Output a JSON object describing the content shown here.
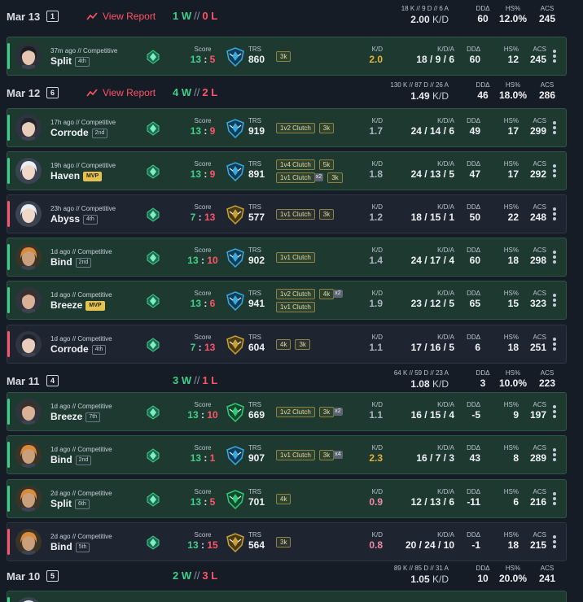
{
  "colors": {
    "win": "#3fcf8a",
    "loss": "#ff5468",
    "neutral": "#aab4c0",
    "gold": "#e3b33a",
    "pink": "#f08aa7"
  },
  "days": [
    {
      "date": "Mar 13",
      "count": "1",
      "report_label": "View Report",
      "wins": "1 W",
      "losses": "0 L",
      "raw": "18 K // 9 D // 6 A",
      "kd_value": "2.00",
      "kd_unit": "K/D",
      "dda_label": "DDΔ",
      "dda": "60",
      "hs_label": "HS%",
      "hs": "12.0%",
      "acs_label": "ACS",
      "acs": "245",
      "matches": [
        {
          "result": "win",
          "agent": "sage-dark",
          "meta": "37m ago // Competitive",
          "map": "Split",
          "place": "4th",
          "place_mvp": false,
          "score_label": "Score",
          "score_a": "13",
          "score_b": "5",
          "score_a_color": "win",
          "score_b_color": "loss",
          "trs_label": "TRS",
          "trs": "860",
          "trs_icon": "blue",
          "tags": [
            [
              {
                "t": "3k"
              }
            ]
          ],
          "kd_label": "K/D",
          "kd": "2.0",
          "kd_color": "gold",
          "kda_label": "K/D/A",
          "kda": "18 / 9 / 6",
          "dda_label": "DDΔ",
          "dda": "60",
          "hs_label": "HS%",
          "hs": "12",
          "acs_label": "ACS",
          "acs": "245"
        }
      ]
    },
    {
      "date": "Mar 12",
      "count": "6",
      "report_label": "View Report",
      "wins": "4 W",
      "losses": "2 L",
      "raw": "130 K // 87 D // 26 A",
      "kd_value": "1.49",
      "kd_unit": "K/D",
      "dda_label": "DDΔ",
      "dda": "46",
      "hs_label": "HS%",
      "hs": "18.0%",
      "acs_label": "ACS",
      "acs": "286",
      "matches": [
        {
          "result": "win",
          "agent": "dark-hair",
          "meta": "17h ago // Competitive",
          "map": "Corrode",
          "place": "2nd",
          "place_mvp": false,
          "score_label": "Score",
          "score_a": "13",
          "score_b": "9",
          "score_a_color": "win",
          "score_b_color": "loss",
          "trs_label": "TRS",
          "trs": "919",
          "trs_icon": "blue",
          "tags": [
            [
              {
                "t": "1v2 Clutch"
              },
              {
                "t": "3k"
              }
            ]
          ],
          "kd_label": "K/D",
          "kd": "1.7",
          "kd_color": "neutral",
          "kda_label": "K/D/A",
          "kda": "24 / 14 / 6",
          "dda_label": "DDΔ",
          "dda": "49",
          "hs_label": "HS%",
          "hs": "17",
          "acs_label": "ACS",
          "acs": "299"
        },
        {
          "result": "win",
          "agent": "white-hair",
          "meta": "19h ago // Competitive",
          "map": "Haven",
          "place": "MVP",
          "place_mvp": true,
          "score_label": "Score",
          "score_a": "13",
          "score_b": "9",
          "score_a_color": "win",
          "score_b_color": "loss",
          "trs_label": "TRS",
          "trs": "891",
          "trs_icon": "blue",
          "tags": [
            [
              {
                "t": "1v4 Clutch"
              },
              {
                "t": "5k"
              }
            ],
            [
              {
                "t": "1v1 Clutch",
                "x": "x2"
              },
              {
                "t": "3k"
              }
            ]
          ],
          "kd_label": "K/D",
          "kd": "1.8",
          "kd_color": "neutral",
          "kda_label": "K/D/A",
          "kda": "24 / 13 / 5",
          "dda_label": "DDΔ",
          "dda": "47",
          "hs_label": "HS%",
          "hs": "17",
          "acs_label": "ACS",
          "acs": "292"
        },
        {
          "result": "loss",
          "agent": "white-hair",
          "meta": "23h ago // Competitive",
          "map": "Abyss",
          "place": "4th",
          "place_mvp": false,
          "score_label": "Score",
          "score_a": "7",
          "score_b": "13",
          "score_a_color": "win",
          "score_b_color": "loss",
          "trs_label": "TRS",
          "trs": "577",
          "trs_icon": "gold",
          "tags": [
            [
              {
                "t": "1v1 Clutch"
              },
              {
                "t": "3k"
              }
            ]
          ],
          "kd_label": "K/D",
          "kd": "1.2",
          "kd_color": "neutral",
          "kda_label": "K/D/A",
          "kda": "18 / 15 / 1",
          "dda_label": "DDΔ",
          "dda": "50",
          "hs_label": "HS%",
          "hs": "22",
          "acs_label": "ACS",
          "acs": "248"
        },
        {
          "result": "win",
          "agent": "orange-hair",
          "meta": "1d ago // Competitive",
          "map": "Bind",
          "place": "2nd",
          "place_mvp": false,
          "score_label": "Score",
          "score_a": "13",
          "score_b": "10",
          "score_a_color": "win",
          "score_b_color": "loss",
          "trs_label": "TRS",
          "trs": "902",
          "trs_icon": "blue",
          "tags": [
            [
              {
                "t": "1v1 Clutch"
              }
            ]
          ],
          "kd_label": "K/D",
          "kd": "1.4",
          "kd_color": "neutral",
          "kda_label": "K/D/A",
          "kda": "24 / 17 / 4",
          "dda_label": "DDΔ",
          "dda": "60",
          "hs_label": "HS%",
          "hs": "18",
          "acs_label": "ACS",
          "acs": "298"
        },
        {
          "result": "win",
          "agent": "bearded",
          "meta": "1d ago // Competitive",
          "map": "Breeze",
          "place": "MVP",
          "place_mvp": true,
          "score_label": "Score",
          "score_a": "13",
          "score_b": "6",
          "score_a_color": "win",
          "score_b_color": "loss",
          "trs_label": "TRS",
          "trs": "941",
          "trs_icon": "blue",
          "tags": [
            [
              {
                "t": "1v2 Clutch"
              },
              {
                "t": "4k",
                "x": "x2"
              }
            ],
            [
              {
                "t": "1v1 Clutch"
              }
            ]
          ],
          "kd_label": "K/D",
          "kd": "1.9",
          "kd_color": "neutral",
          "kda_label": "K/D/A",
          "kda": "23 / 12 / 5",
          "dda_label": "DDΔ",
          "dda": "65",
          "hs_label": "HS%",
          "hs": "15",
          "acs_label": "ACS",
          "acs": "323"
        },
        {
          "result": "loss",
          "agent": "dark-hair",
          "meta": "1d ago // Competitive",
          "map": "Corrode",
          "place": "4th",
          "place_mvp": false,
          "score_label": "Score",
          "score_a": "7",
          "score_b": "13",
          "score_a_color": "win",
          "score_b_color": "loss",
          "trs_label": "TRS",
          "trs": "604",
          "trs_icon": "gold",
          "tags": [
            [
              {
                "t": "4k"
              },
              {
                "t": "3k"
              }
            ]
          ],
          "kd_label": "K/D",
          "kd": "1.1",
          "kd_color": "neutral",
          "kda_label": "K/D/A",
          "kda": "17 / 16 / 5",
          "dda_label": "DDΔ",
          "dda": "6",
          "hs_label": "HS%",
          "hs": "18",
          "acs_label": "ACS",
          "acs": "251"
        }
      ]
    },
    {
      "date": "Mar 11",
      "count": "4",
      "report_label": "",
      "wins": "3 W",
      "losses": "1 L",
      "raw": "64 K // 59 D // 23 A",
      "kd_value": "1.08",
      "kd_unit": "K/D",
      "dda_label": "DDΔ",
      "dda": "3",
      "hs_label": "HS%",
      "hs": "10.0%",
      "acs_label": "ACS",
      "acs": "223",
      "matches": [
        {
          "result": "win",
          "agent": "bearded",
          "meta": "1d ago // Competitive",
          "map": "Breeze",
          "place": "7th",
          "place_mvp": false,
          "score_label": "Score",
          "score_a": "13",
          "score_b": "10",
          "score_a_color": "win",
          "score_b_color": "loss",
          "trs_label": "TRS",
          "trs": "669",
          "trs_icon": "green",
          "tags": [
            [
              {
                "t": "1v2 Clutch"
              },
              {
                "t": "3k",
                "x": "x2"
              }
            ]
          ],
          "kd_label": "K/D",
          "kd": "1.1",
          "kd_color": "neutral",
          "kda_label": "K/D/A",
          "kda": "16 / 15 / 4",
          "dda_label": "DDΔ",
          "dda": "-5",
          "hs_label": "HS%",
          "hs": "9",
          "acs_label": "ACS",
          "acs": "197"
        },
        {
          "result": "win",
          "agent": "orange-hair",
          "meta": "1d ago // Competitive",
          "map": "Bind",
          "place": "2nd",
          "place_mvp": false,
          "score_label": "Score",
          "score_a": "13",
          "score_b": "1",
          "score_a_color": "win",
          "score_b_color": "loss",
          "trs_label": "TRS",
          "trs": "907",
          "trs_icon": "blue",
          "tags": [
            [
              {
                "t": "1v1 Clutch"
              },
              {
                "t": "3k",
                "x": "x4"
              }
            ]
          ],
          "kd_label": "K/D",
          "kd": "2.3",
          "kd_color": "gold",
          "kda_label": "K/D/A",
          "kda": "16 / 7 / 3",
          "dda_label": "DDΔ",
          "dda": "43",
          "hs_label": "HS%",
          "hs": "8",
          "acs_label": "ACS",
          "acs": "289"
        },
        {
          "result": "win",
          "agent": "orange-hair",
          "meta": "2d ago // Competitive",
          "map": "Split",
          "place": "6th",
          "place_mvp": false,
          "score_label": "Score",
          "score_a": "13",
          "score_b": "5",
          "score_a_color": "win",
          "score_b_color": "loss",
          "trs_label": "TRS",
          "trs": "701",
          "trs_icon": "green",
          "tags": [
            [
              {
                "t": "4k"
              }
            ]
          ],
          "kd_label": "K/D",
          "kd": "0.9",
          "kd_color": "pink",
          "kda_label": "K/D/A",
          "kda": "12 / 13 / 6",
          "dda_label": "DDΔ",
          "dda": "-11",
          "hs_label": "HS%",
          "hs": "6",
          "acs_label": "ACS",
          "acs": "216"
        },
        {
          "result": "loss",
          "agent": "orange-hair",
          "meta": "2d ago // Competitive",
          "map": "Bind",
          "place": "5th",
          "place_mvp": false,
          "score_label": "Score",
          "score_a": "13",
          "score_b": "15",
          "score_a_color": "win",
          "score_b_color": "loss",
          "trs_label": "TRS",
          "trs": "564",
          "trs_icon": "gold",
          "tags": [
            [
              {
                "t": "3k"
              }
            ]
          ],
          "kd_label": "K/D",
          "kd": "0.8",
          "kd_color": "pink",
          "kda_label": "K/D/A",
          "kda": "20 / 24 / 10",
          "dda_label": "DDΔ",
          "dda": "-1",
          "hs_label": "HS%",
          "hs": "18",
          "acs_label": "ACS",
          "acs": "215"
        }
      ]
    },
    {
      "date": "Mar 10",
      "count": "5",
      "report_label": "",
      "wins": "2 W",
      "losses": "3 L",
      "raw": "89 K // 85 D // 31 A",
      "kd_value": "1.05",
      "kd_unit": "K/D",
      "dda_label": "DDΔ",
      "dda": "10",
      "hs_label": "HS%",
      "hs": "20.0%",
      "acs_label": "ACS",
      "acs": "241",
      "matches": [
        {
          "result": "win",
          "agent": "white-hair",
          "meta": "",
          "map": "",
          "place": "",
          "place_mvp": false,
          "score_label": "",
          "score_a": "",
          "score_b": "",
          "score_a_color": "win",
          "score_b_color": "loss",
          "trs_label": "",
          "trs": "",
          "trs_icon": "none",
          "tags": [],
          "kd_label": "",
          "kd": "",
          "kd_color": "neutral",
          "kda_label": "",
          "kda": "",
          "dda_label": "",
          "dda": "",
          "hs_label": "",
          "hs": "",
          "acs_label": "",
          "acs": ""
        }
      ]
    }
  ]
}
